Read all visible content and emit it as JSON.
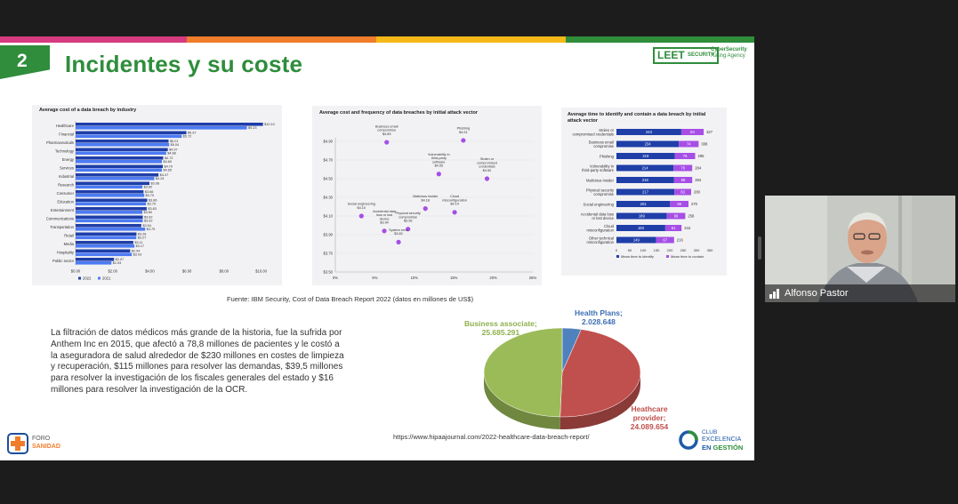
{
  "slide": {
    "number": "2",
    "title": "Incidentes y su coste",
    "stripe_colors": [
      "#d63b7f",
      "#ef7d2b",
      "#f5b818",
      "#2f8d3c"
    ],
    "logo_leet": "LEET",
    "logo_leet_small": "SECURITY",
    "logo_tag_line1": "CyberSecurity",
    "logo_tag_line2": "Rating Agency",
    "source": "Fuente: IBM Security, Cost of Data Breach Report 2022 (datos en millones de US$)",
    "paragraph": "La filtración de datos médicos más grande de la historia, fue la sufrida por Anthem Inc en 2015, que afectó a 78,8 millones de pacientes y le costó a la aseguradora de salud alrededor de $230 millones en costes de limpieza y recuperación, $115 millones para resolver las demandas, $39,5 millones para resolver la investigación de los fiscales generales del estado y $16 millones para resolver la investigación de la OCR.",
    "url": "https://www.hipaajournal.com/2022-healthcare-data-breach-report/",
    "foro_line1": "FORO",
    "foro_line2": "SANIDAD",
    "club_line1": "CLUB",
    "club_line2": "EXCELENCIA",
    "club_line3_a": "EN ",
    "club_line3_b": "GESTIÓN"
  },
  "video": {
    "participant_name": "Alfonso Pastor"
  },
  "chart_data": [
    {
      "type": "bar",
      "title": "Average cost of a data breach by industry",
      "categories": [
        "Healthcare",
        "Financial",
        "Pharmaceuticals",
        "Technology",
        "Energy",
        "Services",
        "Industrial",
        "Research",
        "Consumer",
        "Education",
        "Entertainment",
        "Communications",
        "Transportation",
        "Retail",
        "Media",
        "Hospitality",
        "Public sector"
      ],
      "series": [
        {
          "name": "2022",
          "color": "#1f3ea8",
          "values": [
            10.1,
            5.97,
            5.01,
            4.97,
            4.72,
            4.7,
            4.47,
            3.98,
            3.66,
            3.86,
            3.83,
            3.62,
            3.54,
            3.28,
            3.11,
            2.94,
            2.07
          ]
        },
        {
          "name": "2021",
          "color": "#4d7bf3",
          "values": [
            9.23,
            5.72,
            5.04,
            4.88,
            4.65,
            4.65,
            4.24,
            3.6,
            3.7,
            3.79,
            3.6,
            3.62,
            3.75,
            3.27,
            3.17,
            3.03,
            1.93
          ]
        }
      ],
      "value_labels": [
        [
          "$10.10",
          "$9.23"
        ],
        [
          "$5.97",
          "$5.72"
        ],
        [
          "$5.01",
          "$5.04"
        ],
        [
          "$4.97",
          "$4.88"
        ],
        [
          "$4.72",
          "$4.65"
        ],
        [
          "$4.70",
          "$4.65"
        ],
        [
          "$4.47",
          "$4.24"
        ],
        [
          "$3.98",
          "$3.60"
        ],
        [
          "$3.66",
          "$3.70"
        ],
        [
          "$3.86",
          "$3.79"
        ],
        [
          "$3.83",
          "$3.60"
        ],
        [
          "$3.62",
          "$3.62"
        ],
        [
          "$3.54",
          "$3.75"
        ],
        [
          "$3.28",
          "$3.27"
        ],
        [
          "$3.11",
          "$3.17"
        ],
        [
          "$2.94",
          "$3.03"
        ],
        [
          "$2.07",
          "$1.93"
        ]
      ],
      "x_ticks": [
        "$0.00",
        "$2.00",
        "$4.00",
        "$6.00",
        "$8.00",
        "$10.00"
      ],
      "xlim": [
        0,
        10.5
      ],
      "legend": [
        "2022",
        "2021"
      ],
      "legend_position": "bottom-left"
    },
    {
      "type": "scatter",
      "title": "Average cost and frequency of data breaches by initial attack vector",
      "point_color": "#a64ee6",
      "points": [
        {
          "label": "Business email compromise",
          "value_label": "$4.89",
          "x": 6.5,
          "y": 4.89
        },
        {
          "label": "Phishing",
          "value_label": "$4.91",
          "x": 16.2,
          "y": 4.91
        },
        {
          "label": "Vulnerability in third-party software",
          "value_label": "$4.55",
          "x": 13.1,
          "y": 4.55
        },
        {
          "label": "Stolen or compromised credentials",
          "value_label": "$4.50",
          "x": 19.2,
          "y": 4.5
        },
        {
          "label": "Malicious insider",
          "value_label": "$4.18",
          "x": 11.4,
          "y": 4.18
        },
        {
          "label": "Social engineering",
          "value_label": "$4.10",
          "x": 3.3,
          "y": 4.1
        },
        {
          "label": "Cloud misconfiguration",
          "value_label": "$4.14",
          "x": 15.1,
          "y": 4.14
        },
        {
          "label": "Physical security compromise",
          "value_label": "$3.96",
          "x": 9.2,
          "y": 3.96
        },
        {
          "label": "Accidental data loss or lost device",
          "value_label": "$3.94",
          "x": 6.2,
          "y": 3.94
        },
        {
          "label": "System error",
          "value_label": "$3.82",
          "x": 8.0,
          "y": 3.82
        }
      ],
      "y_ticks": [
        "$4.90",
        "$4.70",
        "$4.50",
        "$4.30",
        "$4.10",
        "$3.90",
        "$3.70",
        "$3.50"
      ],
      "x_ticks": [
        "0%",
        "5%",
        "10%",
        "15%",
        "20%",
        "25%"
      ],
      "xlim": [
        0,
        25
      ],
      "ylim": [
        3.5,
        4.9
      ]
    },
    {
      "type": "bar",
      "title": "Average time to identify and contain a data breach by initial attack vector",
      "categories": [
        "Stolen or compromised credentials",
        "Business email compromise",
        "Phishing",
        "Vulnerability in third-party software",
        "Malicious insider",
        "Physical security compromise",
        "Social engineering",
        "Accidental data loss or lost device",
        "Cloud misconfiguration",
        "Other technical misconfiguration"
      ],
      "series": [
        {
          "name": "Mean time to identify",
          "color": "#1f3ea8",
          "values": [
            243,
            234,
            219,
            214,
            216,
            217,
            201,
            189,
            183,
            149
          ]
        },
        {
          "name": "Mean time to contain",
          "color": "#a64ee6",
          "values": [
            84,
            74,
            76,
            70,
            68,
            63,
            69,
            69,
            61,
            67
          ]
        }
      ],
      "totals": [
        327,
        308,
        295,
        284,
        284,
        280,
        270,
        258,
        244,
        216
      ],
      "x_ticks": [
        "0",
        "50",
        "100",
        "150",
        "200",
        "250",
        "300",
        "350"
      ],
      "xlim": [
        0,
        350
      ],
      "stacked": true,
      "legend_position": "bottom"
    },
    {
      "type": "pie",
      "slices": [
        {
          "label": "Health Plans;",
          "value_label": "2.028.648",
          "value": 2028648,
          "color": "#4f81bd",
          "text_color": "#3e6fb5"
        },
        {
          "label": "Heathcare provider;",
          "value_label": "24.089.654",
          "value": 24089654,
          "color": "#c0504d",
          "text_color": "#c0504d"
        },
        {
          "label": "Business associate;",
          "value_label": "25.685.291",
          "value": 25685291,
          "color": "#9bbb59",
          "text_color": "#8db04c"
        }
      ]
    }
  ]
}
